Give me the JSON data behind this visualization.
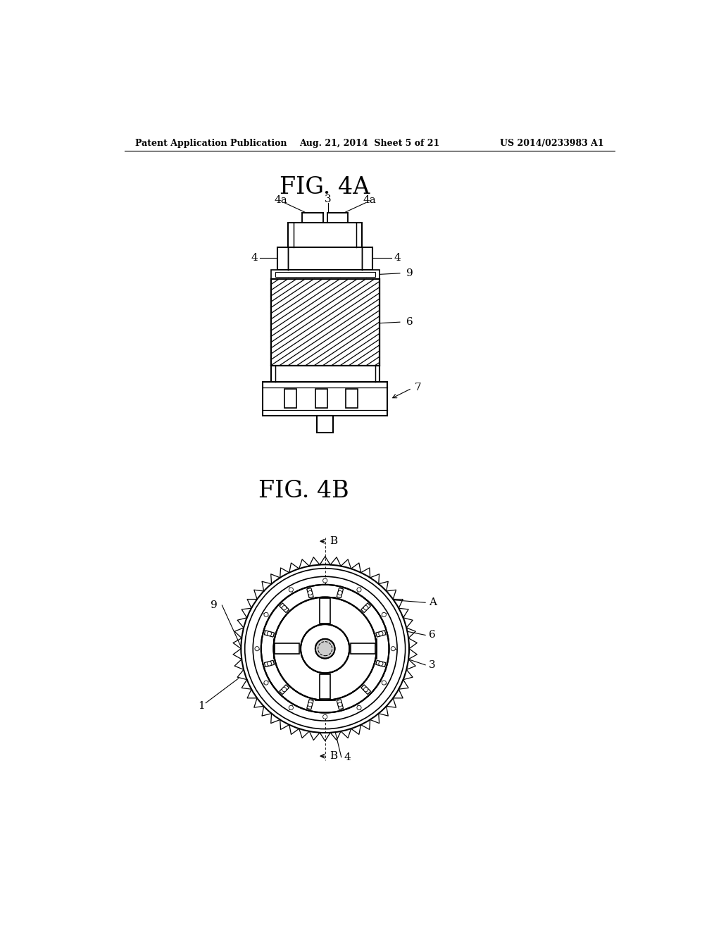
{
  "bg_color": "#ffffff",
  "header_left": "Patent Application Publication",
  "header_center": "Aug. 21, 2014  Sheet 5 of 21",
  "header_right": "US 2014/0233983 A1",
  "fig4a_title": "FIG. 4A",
  "fig4b_title": "FIG. 4B",
  "line_color": "#000000",
  "line_width": 1.5
}
